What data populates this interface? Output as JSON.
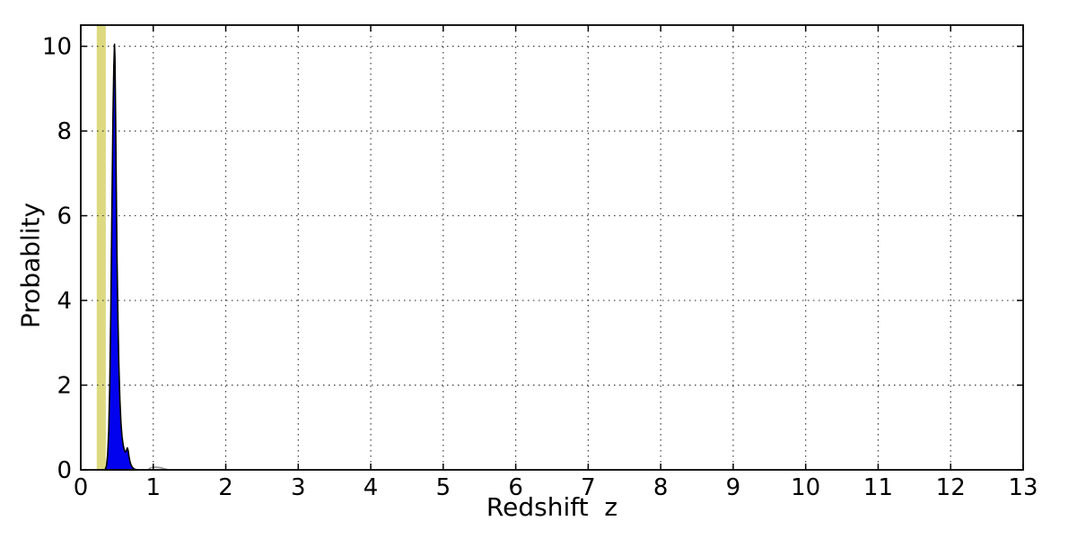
{
  "page": {
    "background": "#ffffff"
  },
  "chart_data": {
    "type": "area",
    "title": "",
    "xlabel": "Redshift  z",
    "ylabel": "Probablity",
    "xlim": [
      0,
      13
    ],
    "ylim": [
      0,
      10.5
    ],
    "x_ticks": [
      0,
      1,
      2,
      3,
      4,
      5,
      6,
      7,
      8,
      9,
      10,
      11,
      12,
      13
    ],
    "y_ticks": [
      0,
      2,
      4,
      6,
      8,
      10
    ],
    "grid": {
      "on": true,
      "style": "dotted",
      "color": "#3c3c3c"
    },
    "frame_color": "#000000",
    "band": {
      "name": "highlight-band",
      "from": 0.22,
      "to": 0.345,
      "color": "#dcd981"
    },
    "series": [
      {
        "name": "redshift-probability-pdf",
        "type": "area",
        "fill": "#0202ee",
        "edge": "#000000",
        "points": [
          [
            0.335,
            0
          ],
          [
            0.355,
            0.1
          ],
          [
            0.37,
            0.35
          ],
          [
            0.385,
            0.9
          ],
          [
            0.4,
            2.0
          ],
          [
            0.415,
            3.8
          ],
          [
            0.43,
            6.2
          ],
          [
            0.445,
            8.4
          ],
          [
            0.455,
            9.5
          ],
          [
            0.465,
            10.05
          ],
          [
            0.472,
            9.7
          ],
          [
            0.48,
            8.4
          ],
          [
            0.49,
            6.6
          ],
          [
            0.5,
            5.0
          ],
          [
            0.512,
            3.6
          ],
          [
            0.525,
            2.5
          ],
          [
            0.54,
            1.65
          ],
          [
            0.555,
            1.1
          ],
          [
            0.57,
            0.78
          ],
          [
            0.585,
            0.58
          ],
          [
            0.6,
            0.47
          ],
          [
            0.615,
            0.42
          ],
          [
            0.63,
            0.46
          ],
          [
            0.643,
            0.52
          ],
          [
            0.654,
            0.46
          ],
          [
            0.665,
            0.32
          ],
          [
            0.678,
            0.2
          ],
          [
            0.695,
            0.11
          ],
          [
            0.715,
            0.05
          ],
          [
            0.74,
            0.02
          ],
          [
            0.78,
            0
          ]
        ]
      },
      {
        "name": "faint-secondary-tail",
        "type": "line",
        "color": "#8f8f8f",
        "points": [
          [
            0.93,
            0.0
          ],
          [
            0.96,
            0.045
          ],
          [
            1.0,
            0.065
          ],
          [
            1.05,
            0.06
          ],
          [
            1.1,
            0.05
          ],
          [
            1.15,
            0.025
          ],
          [
            1.2,
            0.005
          ]
        ]
      }
    ]
  }
}
